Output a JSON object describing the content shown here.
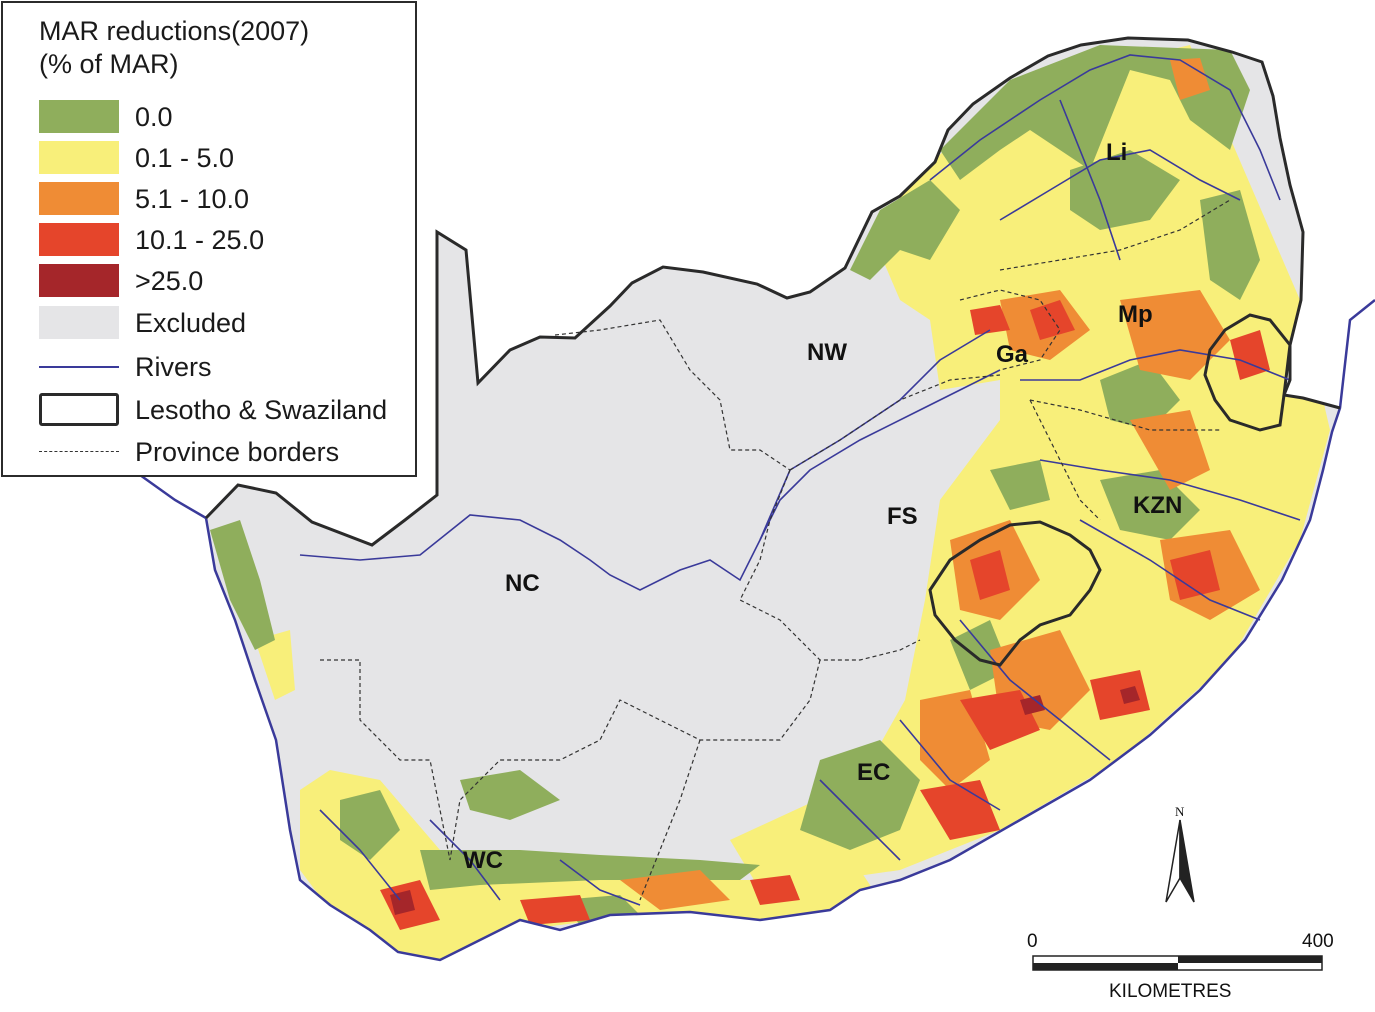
{
  "legend": {
    "title_line1": "MAR reductions(2007)",
    "title_line2": "(% of MAR)",
    "items": [
      {
        "label": "0.0",
        "color": "#8fae5c"
      },
      {
        "label": "0.1 - 5.0",
        "color": "#f8ef7a"
      },
      {
        "label": "5.1 - 10.0",
        "color": "#ef8c35"
      },
      {
        "label": "10.1 - 25.0",
        "color": "#e5452b"
      },
      {
        "label": ">25.0",
        "color": "#a5262a"
      },
      {
        "label": "Excluded",
        "color": "#e5e5e7"
      }
    ],
    "rivers_label": "Rivers",
    "lesotho_label": "Lesotho & Swaziland",
    "province_label": "Province borders"
  },
  "provinces": {
    "li": "Li",
    "mp": "Mp",
    "nw": "NW",
    "ga": "Ga",
    "fs": "FS",
    "kzn": "KZN",
    "nc": "NC",
    "ec": "EC",
    "wc": "WC"
  },
  "north_arrow": {
    "label": "N"
  },
  "scale_bar": {
    "start_label": "0",
    "end_label": "400",
    "unit_label": "KILOMETRES"
  },
  "colors": {
    "river": "#3a3a9a",
    "excluded": "#e5e5e7",
    "border": "#2a2a2a"
  }
}
